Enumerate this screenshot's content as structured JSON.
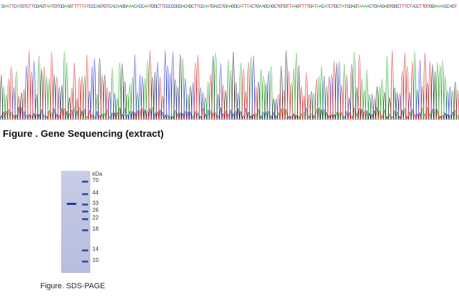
{
  "sequence": {
    "text": "GAATTCATGTCTTCGAGTAATGTCGAAGTTTTTATCCCAGTGTCACAAGGAAACACCAATGGCTTCCCCGCGACAGCTTCCAATGACCTGAAGGCATTTACTGAAGCAGCTGTGTTAAGTTTTGATAACATCTGCTATCGAGTAAAACTGAAGAGTGGCTTTCTACCTTGTGGAAAACCAGT",
    "base_colors": {
      "A": "#22a022",
      "C": "#2233cc",
      "G": "#222222",
      "T": "#d42222"
    }
  },
  "figure1": {
    "caption": "Figure . Gene Sequencing (extract)"
  },
  "figure2": {
    "caption": "Figure. SDS-PAGE",
    "unit_label": "kDa",
    "markers": [
      "70",
      "44",
      "33",
      "26",
      "22",
      "18",
      "14",
      "10"
    ]
  }
}
